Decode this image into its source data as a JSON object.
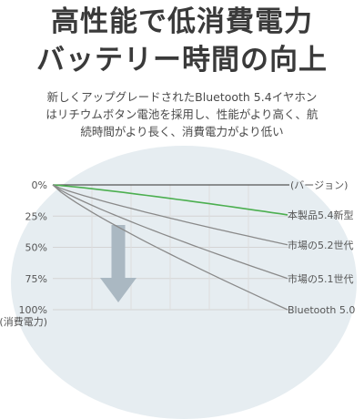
{
  "header": {
    "line1": "高性能で低消費電力",
    "line2": "バッテリー時間の向上"
  },
  "description": {
    "line1": "新しくアップグレードされたBluetooth 5.4イヤホン",
    "line2": "はリチウムボタン電池を採用し、性能がより高く、航",
    "line3": "続時間がより長く、消費電力がより低い"
  },
  "colors": {
    "highlight_series": "#4caf50",
    "other_series": "#8a8a8a",
    "arrow": "#aab8c2",
    "background_blob": "#e6edf1"
  },
  "chart_data": {
    "type": "line",
    "x": [
      0,
      1
    ],
    "ylim": [
      0,
      100
    ],
    "y_inverted": true,
    "y_ticks": [
      "0%",
      "25%",
      "50%",
      "75%",
      "100%"
    ],
    "y_tick_values": [
      0,
      25,
      50,
      75,
      100
    ],
    "y_axis_note": "(消費電力)",
    "top_label": "(バージョン)",
    "grid": true,
    "series": [
      {
        "name": "本製品5.4新型",
        "values": [
          0,
          24
        ],
        "highlight": true
      },
      {
        "name": "市場の5.2世代",
        "values": [
          0,
          48
        ]
      },
      {
        "name": "市場の5.1世代",
        "values": [
          0,
          75
        ]
      },
      {
        "name": "Bluetooth 5.0",
        "values": [
          0,
          100
        ]
      }
    ]
  }
}
